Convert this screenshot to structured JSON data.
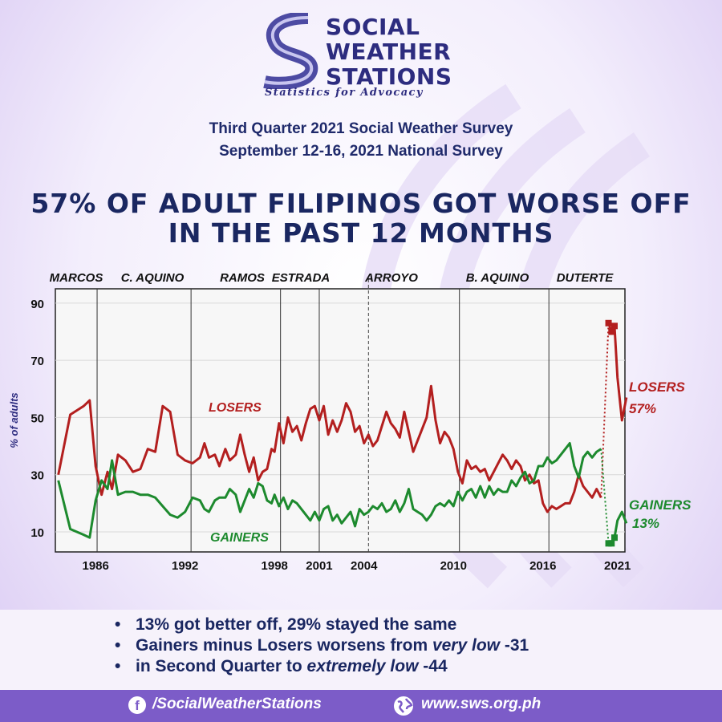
{
  "brand": {
    "name_lines": [
      "SOCIAL",
      "WEATHER",
      "STATIONS"
    ],
    "tagline": "Statistics for Advocacy",
    "colors": {
      "navy": "#2d2c7f",
      "purple": "#7c5cc8"
    }
  },
  "subtitle": {
    "line1": "Third Quarter 2021 Social Weather Survey",
    "line2": "September 12-16, 2021 National Survey"
  },
  "headline": {
    "line1": "57% OF ADULT FILIPINOS GOT WORSE OFF",
    "line2": "IN THE PAST 12 MONTHS"
  },
  "chart_data": {
    "type": "line",
    "ylabel": "% of adults",
    "ylim": [
      3,
      95
    ],
    "xlim": [
      1983.3,
      2021.5
    ],
    "yticks": [
      10,
      30,
      50,
      70,
      90
    ],
    "xticks": [
      {
        "value": 1986,
        "label": "1986"
      },
      {
        "value": 1992,
        "label": "1992"
      },
      {
        "value": 1998,
        "label": "1998"
      },
      {
        "value": 2001,
        "label": "2001"
      },
      {
        "value": 2004,
        "label": "2004"
      },
      {
        "value": 2010,
        "label": "2010"
      },
      {
        "value": 2016,
        "label": "2016"
      },
      {
        "value": 2021,
        "label": "2021"
      }
    ],
    "grid": true,
    "eras": [
      {
        "label": "MARCOS",
        "boundary": 1986.1
      },
      {
        "label": "C. AQUINO",
        "boundary": 1992.4
      },
      {
        "label": "RAMOS",
        "boundary": 1998.4
      },
      {
        "label": "ESTRADA",
        "boundary": 2001.0
      },
      {
        "label": "ARROYO",
        "boundary": 2010.4,
        "dashed_boundary": 2004.3
      },
      {
        "label": "B. AQUINO",
        "boundary": 2016.4
      },
      {
        "label": "DUTERTE",
        "boundary": null
      }
    ],
    "series": [
      {
        "name": "LOSERS",
        "end_label": "57%",
        "color": "#b31f1f",
        "points": [
          [
            1983.5,
            30
          ],
          [
            1984.3,
            51
          ],
          [
            1985.2,
            54
          ],
          [
            1985.6,
            56
          ],
          [
            1986.0,
            33
          ],
          [
            1986.4,
            23
          ],
          [
            1986.8,
            31
          ],
          [
            1987.1,
            25
          ],
          [
            1987.5,
            37
          ],
          [
            1988.0,
            35
          ],
          [
            1988.5,
            31
          ],
          [
            1989.0,
            32
          ],
          [
            1989.5,
            39
          ],
          [
            1990.0,
            38
          ],
          [
            1990.5,
            54
          ],
          [
            1991.0,
            52
          ],
          [
            1991.5,
            37
          ],
          [
            1992.0,
            35
          ],
          [
            1992.5,
            34
          ],
          [
            1993.0,
            36
          ],
          [
            1993.3,
            41
          ],
          [
            1993.6,
            36
          ],
          [
            1994.0,
            37
          ],
          [
            1994.3,
            33
          ],
          [
            1994.7,
            39
          ],
          [
            1995.0,
            35
          ],
          [
            1995.4,
            37
          ],
          [
            1995.7,
            44
          ],
          [
            1996.0,
            37
          ],
          [
            1996.3,
            31
          ],
          [
            1996.6,
            36
          ],
          [
            1996.9,
            28
          ],
          [
            1997.2,
            31
          ],
          [
            1997.5,
            32
          ],
          [
            1997.8,
            39
          ],
          [
            1998.0,
            38
          ],
          [
            1998.3,
            48
          ],
          [
            1998.6,
            41
          ],
          [
            1998.9,
            50
          ],
          [
            1999.2,
            45
          ],
          [
            1999.5,
            47
          ],
          [
            1999.8,
            42
          ],
          [
            2000.1,
            48
          ],
          [
            2000.4,
            53
          ],
          [
            2000.7,
            54
          ],
          [
            2001.0,
            49
          ],
          [
            2001.3,
            54
          ],
          [
            2001.6,
            44
          ],
          [
            2001.9,
            49
          ],
          [
            2002.2,
            45
          ],
          [
            2002.5,
            49
          ],
          [
            2002.8,
            55
          ],
          [
            2003.1,
            52
          ],
          [
            2003.4,
            45
          ],
          [
            2003.7,
            47
          ],
          [
            2004.0,
            41
          ],
          [
            2004.3,
            44
          ],
          [
            2004.6,
            40
          ],
          [
            2004.9,
            42
          ],
          [
            2005.2,
            47
          ],
          [
            2005.5,
            52
          ],
          [
            2005.8,
            48
          ],
          [
            2006.1,
            46
          ],
          [
            2006.4,
            43
          ],
          [
            2006.7,
            52
          ],
          [
            2007.0,
            45
          ],
          [
            2007.3,
            38
          ],
          [
            2007.6,
            42
          ],
          [
            2007.9,
            46
          ],
          [
            2008.2,
            50
          ],
          [
            2008.5,
            61
          ],
          [
            2008.8,
            49
          ],
          [
            2009.1,
            41
          ],
          [
            2009.4,
            45
          ],
          [
            2009.7,
            43
          ],
          [
            2010.0,
            39
          ],
          [
            2010.3,
            31
          ],
          [
            2010.6,
            27
          ],
          [
            2010.9,
            35
          ],
          [
            2011.2,
            32
          ],
          [
            2011.5,
            33
          ],
          [
            2011.8,
            31
          ],
          [
            2012.1,
            32
          ],
          [
            2012.4,
            28
          ],
          [
            2012.7,
            31
          ],
          [
            2013.0,
            34
          ],
          [
            2013.3,
            37
          ],
          [
            2013.6,
            35
          ],
          [
            2013.9,
            32
          ],
          [
            2014.2,
            35
          ],
          [
            2014.5,
            33
          ],
          [
            2014.8,
            28
          ],
          [
            2015.1,
            30
          ],
          [
            2015.4,
            27
          ],
          [
            2015.7,
            28
          ],
          [
            2016.0,
            20
          ],
          [
            2016.3,
            17
          ],
          [
            2016.6,
            19
          ],
          [
            2016.9,
            18
          ],
          [
            2017.2,
            19
          ],
          [
            2017.5,
            20
          ],
          [
            2017.8,
            20
          ],
          [
            2018.1,
            24
          ],
          [
            2018.4,
            30
          ],
          [
            2018.7,
            26
          ],
          [
            2019.0,
            24
          ],
          [
            2019.3,
            22
          ],
          [
            2019.6,
            25
          ],
          [
            2019.9,
            22
          ]
        ],
        "pandemic_points": [
          [
            2020.4,
            83
          ],
          [
            2020.6,
            80
          ],
          [
            2020.8,
            82
          ],
          [
            2021.0,
            64
          ],
          [
            2021.3,
            49
          ],
          [
            2021.6,
            57
          ]
        ],
        "pandemic_start": [
          2019.9,
          22
        ]
      },
      {
        "name": "GAINERS",
        "end_label": "13%",
        "color": "#1d8a2e",
        "points": [
          [
            1983.5,
            28
          ],
          [
            1984.3,
            11
          ],
          [
            1985.2,
            9
          ],
          [
            1985.6,
            8
          ],
          [
            1986.0,
            21
          ],
          [
            1986.4,
            28
          ],
          [
            1986.8,
            25
          ],
          [
            1987.1,
            35
          ],
          [
            1987.5,
            23
          ],
          [
            1988.0,
            24
          ],
          [
            1988.5,
            24
          ],
          [
            1989.0,
            23
          ],
          [
            1989.5,
            23
          ],
          [
            1990.0,
            22
          ],
          [
            1990.5,
            19
          ],
          [
            1991.0,
            16
          ],
          [
            1991.5,
            15
          ],
          [
            1992.0,
            17
          ],
          [
            1992.5,
            22
          ],
          [
            1993.0,
            21
          ],
          [
            1993.3,
            18
          ],
          [
            1993.6,
            17
          ],
          [
            1994.0,
            21
          ],
          [
            1994.3,
            22
          ],
          [
            1994.7,
            22
          ],
          [
            1995.0,
            25
          ],
          [
            1995.4,
            23
          ],
          [
            1995.7,
            17
          ],
          [
            1996.0,
            21
          ],
          [
            1996.3,
            25
          ],
          [
            1996.6,
            22
          ],
          [
            1996.9,
            27
          ],
          [
            1997.2,
            26
          ],
          [
            1997.5,
            21
          ],
          [
            1997.8,
            20
          ],
          [
            1998.0,
            23
          ],
          [
            1998.3,
            19
          ],
          [
            1998.6,
            22
          ],
          [
            1998.9,
            18
          ],
          [
            1999.2,
            21
          ],
          [
            1999.5,
            20
          ],
          [
            1999.8,
            18
          ],
          [
            2000.1,
            16
          ],
          [
            2000.4,
            14
          ],
          [
            2000.7,
            17
          ],
          [
            2001.0,
            14
          ],
          [
            2001.3,
            18
          ],
          [
            2001.6,
            19
          ],
          [
            2001.9,
            14
          ],
          [
            2002.2,
            16
          ],
          [
            2002.5,
            13
          ],
          [
            2002.8,
            15
          ],
          [
            2003.1,
            17
          ],
          [
            2003.4,
            12
          ],
          [
            2003.7,
            18
          ],
          [
            2004.0,
            16
          ],
          [
            2004.3,
            17
          ],
          [
            2004.6,
            19
          ],
          [
            2004.9,
            18
          ],
          [
            2005.2,
            20
          ],
          [
            2005.5,
            17
          ],
          [
            2005.8,
            18
          ],
          [
            2006.1,
            21
          ],
          [
            2006.4,
            17
          ],
          [
            2006.7,
            20
          ],
          [
            2007.0,
            25
          ],
          [
            2007.3,
            18
          ],
          [
            2007.6,
            17
          ],
          [
            2007.9,
            16
          ],
          [
            2008.2,
            14
          ],
          [
            2008.5,
            16
          ],
          [
            2008.8,
            19
          ],
          [
            2009.1,
            20
          ],
          [
            2009.4,
            19
          ],
          [
            2009.7,
            21
          ],
          [
            2010.0,
            19
          ],
          [
            2010.3,
            24
          ],
          [
            2010.6,
            21
          ],
          [
            2010.9,
            24
          ],
          [
            2011.2,
            25
          ],
          [
            2011.5,
            22
          ],
          [
            2011.8,
            26
          ],
          [
            2012.1,
            22
          ],
          [
            2012.4,
            26
          ],
          [
            2012.7,
            23
          ],
          [
            2013.0,
            25
          ],
          [
            2013.3,
            24
          ],
          [
            2013.6,
            24
          ],
          [
            2013.9,
            28
          ],
          [
            2014.2,
            26
          ],
          [
            2014.5,
            29
          ],
          [
            2014.8,
            31
          ],
          [
            2015.1,
            27
          ],
          [
            2015.4,
            28
          ],
          [
            2015.7,
            33
          ],
          [
            2016.0,
            33
          ],
          [
            2016.3,
            36
          ],
          [
            2016.6,
            34
          ],
          [
            2016.9,
            35
          ],
          [
            2017.2,
            37
          ],
          [
            2017.5,
            39
          ],
          [
            2017.8,
            41
          ],
          [
            2018.1,
            33
          ],
          [
            2018.4,
            29
          ],
          [
            2018.7,
            36
          ],
          [
            2019.0,
            38
          ],
          [
            2019.3,
            36
          ],
          [
            2019.6,
            38
          ],
          [
            2019.9,
            39
          ]
        ],
        "pandemic_points": [
          [
            2020.4,
            6
          ],
          [
            2020.6,
            6
          ],
          [
            2020.8,
            8
          ],
          [
            2021.0,
            14
          ],
          [
            2021.3,
            17
          ],
          [
            2021.6,
            13
          ]
        ],
        "pandemic_start": [
          2019.9,
          39
        ]
      }
    ]
  },
  "bullets": {
    "b1": "13% got better off, 29% stayed the same",
    "b2_a": "Gainers minus Losers worsens from ",
    "b2_em1": "very low",
    "b2_b": " -31",
    "b3_a": "in Second Quarter to ",
    "b3_em": "extremely low",
    "b3_b": " -44"
  },
  "footer": {
    "facebook": "/SocialWeatherStations",
    "website": "www.sws.org.ph",
    "facebook_icon": "facebook-icon",
    "web_icon": "globe-icon"
  }
}
